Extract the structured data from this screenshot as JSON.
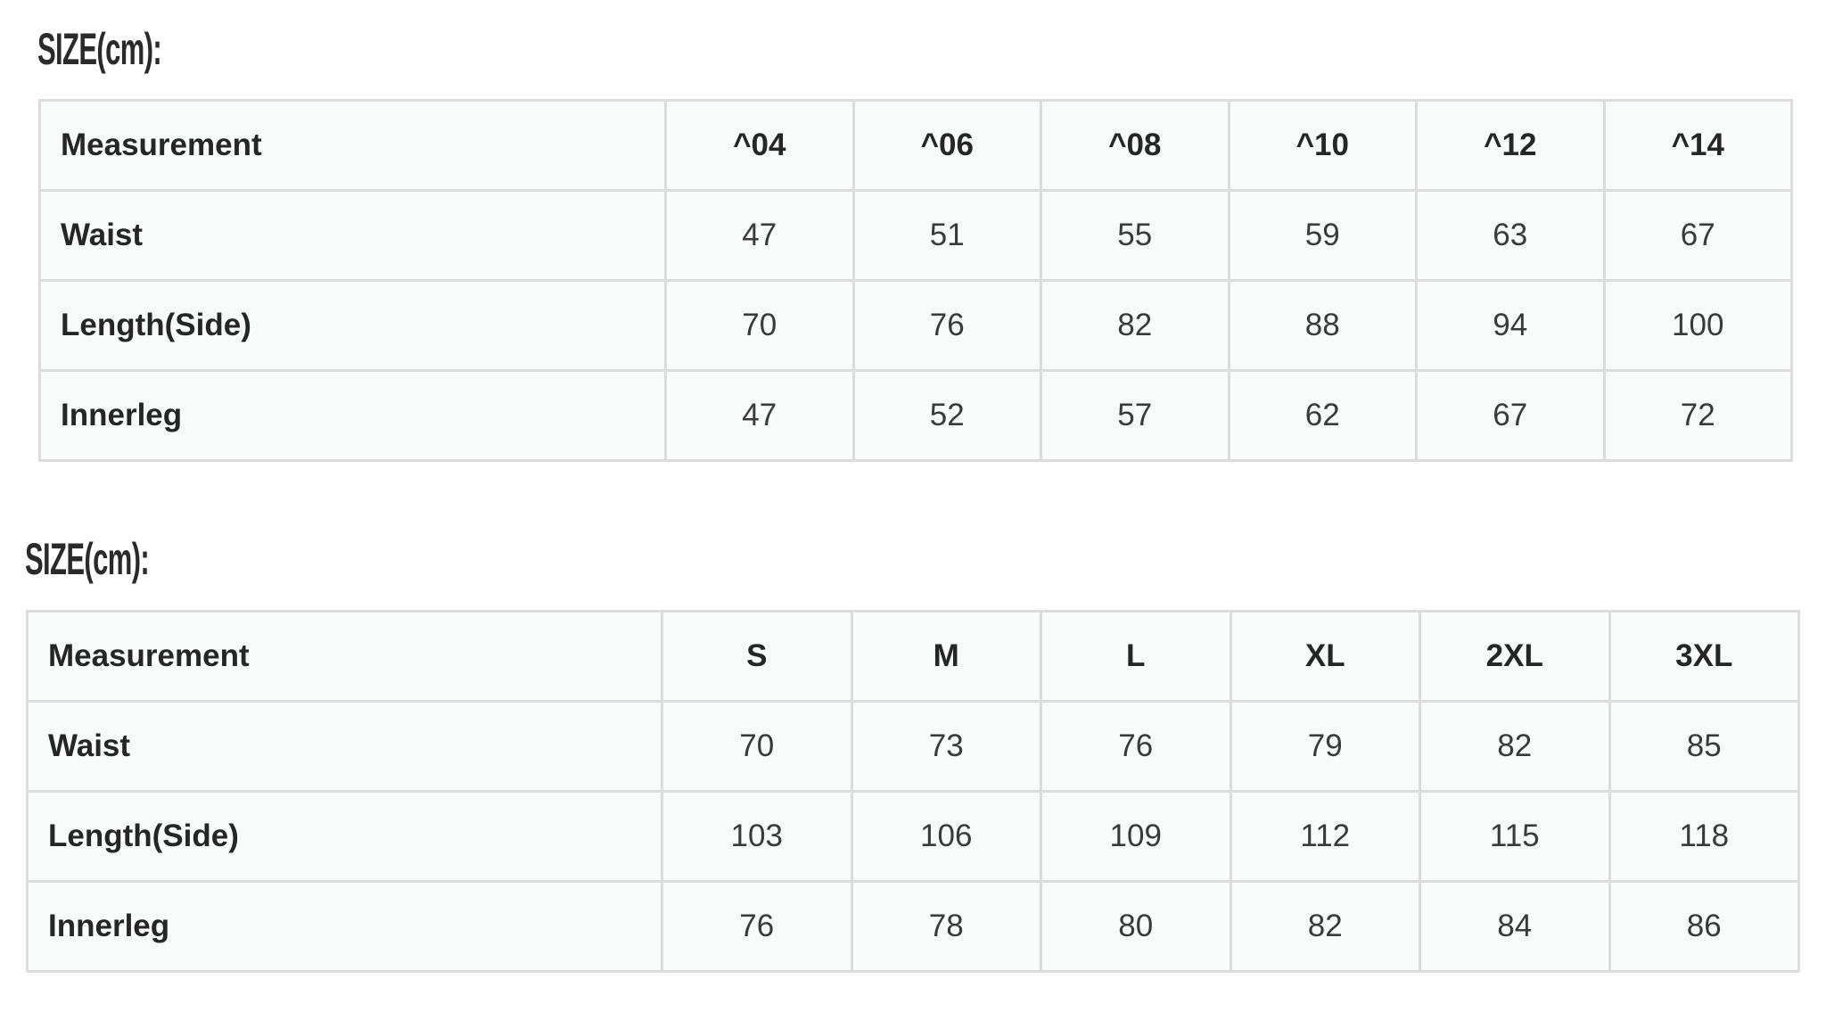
{
  "tables": [
    {
      "heading": "SIZE(cm):",
      "columns": [
        "Measurement",
        "^04",
        "^06",
        "^08",
        "^10",
        "^12",
        "^14"
      ],
      "rows": [
        {
          "label": "Waist",
          "values": [
            "47",
            "51",
            "55",
            "59",
            "63",
            "67"
          ]
        },
        {
          "label": "Length(Side)",
          "values": [
            "70",
            "76",
            "82",
            "88",
            "94",
            "100"
          ]
        },
        {
          "label": "Innerleg",
          "values": [
            "47",
            "52",
            "57",
            "62",
            "67",
            "72"
          ]
        }
      ]
    },
    {
      "heading": "SIZE(cm):",
      "columns": [
        "Measurement",
        "S",
        "M",
        "L",
        "XL",
        "2XL",
        "3XL"
      ],
      "rows": [
        {
          "label": "Waist",
          "values": [
            "70",
            "73",
            "76",
            "79",
            "82",
            "85"
          ]
        },
        {
          "label": "Length(Side)",
          "values": [
            "103",
            "106",
            "109",
            "112",
            "115",
            "118"
          ]
        },
        {
          "label": "Innerleg",
          "values": [
            "76",
            "78",
            "80",
            "82",
            "84",
            "86"
          ]
        }
      ]
    }
  ]
}
